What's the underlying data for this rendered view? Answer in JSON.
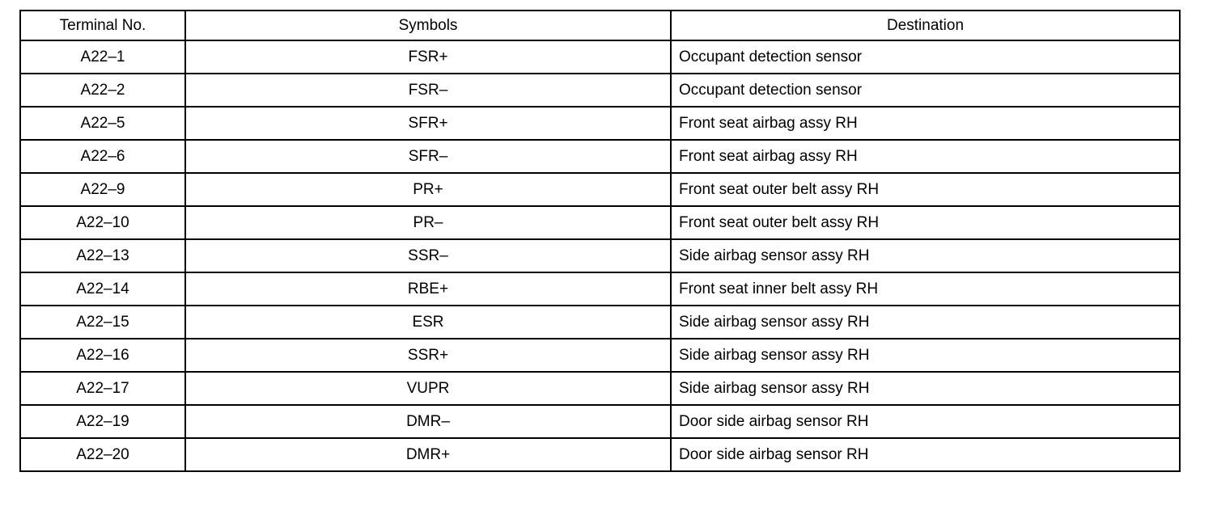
{
  "table": {
    "headers": [
      "Terminal No.",
      "Symbols",
      "Destination"
    ],
    "rows": [
      [
        "A22–1",
        "FSR+",
        "Occupant detection sensor"
      ],
      [
        "A22–2",
        "FSR–",
        "Occupant detection sensor"
      ],
      [
        "A22–5",
        "SFR+",
        "Front seat airbag assy RH"
      ],
      [
        "A22–6",
        "SFR–",
        "Front seat airbag assy RH"
      ],
      [
        "A22–9",
        "PR+",
        "Front seat outer belt assy RH"
      ],
      [
        "A22–10",
        "PR–",
        "Front seat outer belt assy RH"
      ],
      [
        "A22–13",
        "SSR–",
        "Side airbag sensor assy RH"
      ],
      [
        "A22–14",
        "RBE+",
        "Front seat inner belt assy RH"
      ],
      [
        "A22–15",
        "ESR",
        "Side airbag sensor assy RH"
      ],
      [
        "A22–16",
        "SSR+",
        "Side airbag sensor assy RH"
      ],
      [
        "A22–17",
        "VUPR",
        "Side airbag sensor assy RH"
      ],
      [
        "A22–19",
        "DMR–",
        "Door side airbag sensor RH"
      ],
      [
        "A22–20",
        "DMR+",
        "Door side airbag sensor RH"
      ]
    ]
  }
}
